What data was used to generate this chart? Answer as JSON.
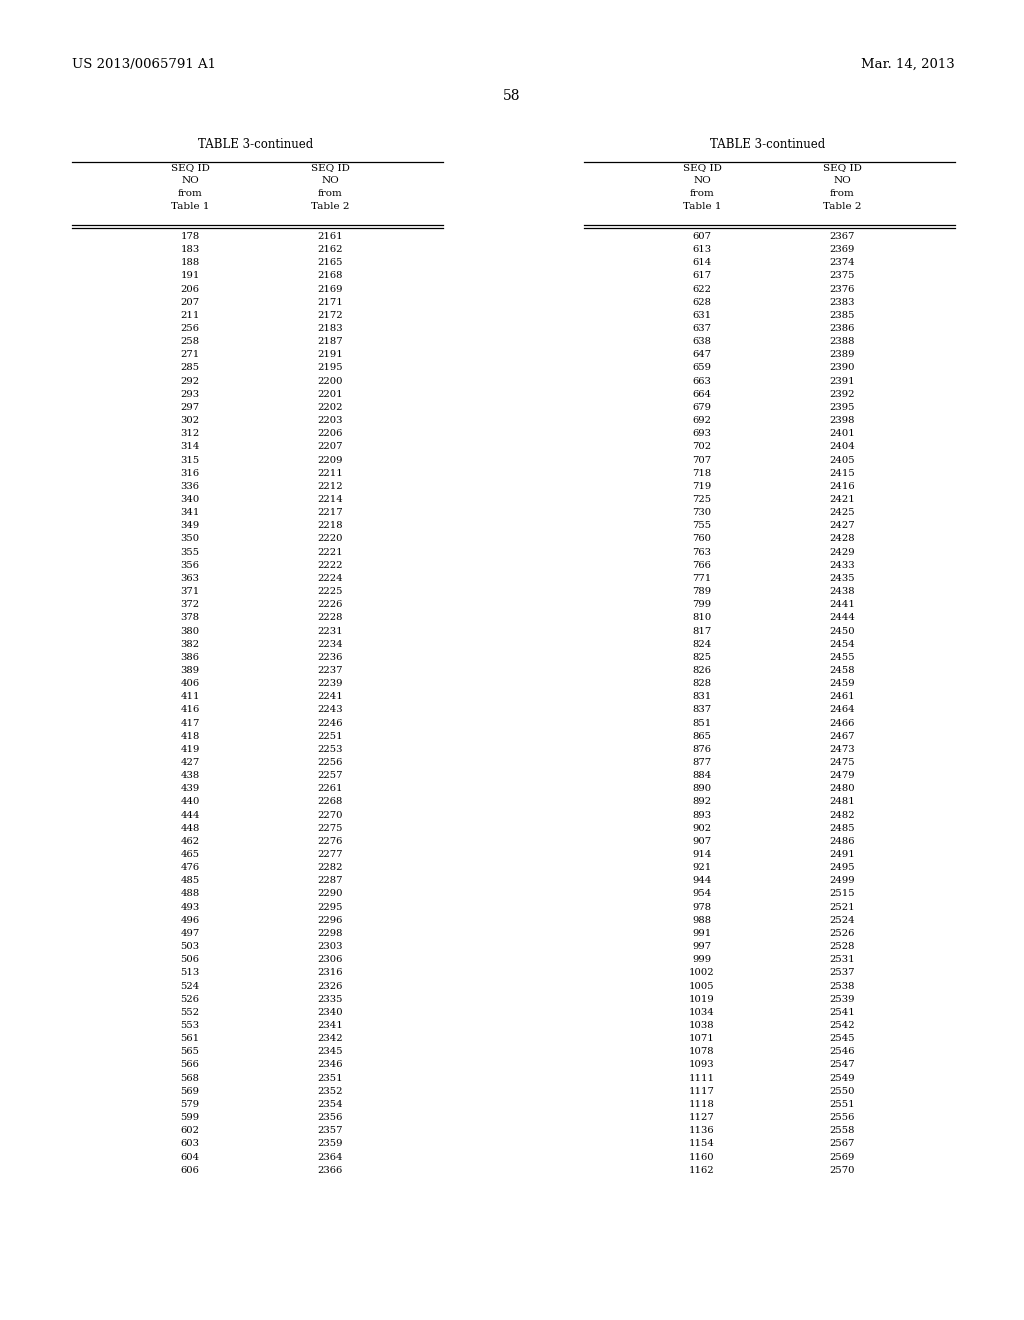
{
  "header_left": "US 2013/0065791 A1",
  "header_right": "Mar. 14, 2013",
  "page_number": "58",
  "table_title": "TABLE 3-continued",
  "col_header": [
    "SEQ ID",
    "NO",
    "from",
    "Table 1"
  ],
  "col_header2": [
    "SEQ ID",
    "NO",
    "from",
    "Table 2"
  ],
  "left_col1": [
    178,
    183,
    188,
    191,
    206,
    207,
    211,
    256,
    258,
    271,
    285,
    292,
    293,
    297,
    302,
    312,
    314,
    315,
    316,
    336,
    340,
    341,
    349,
    350,
    355,
    356,
    363,
    371,
    372,
    378,
    380,
    382,
    386,
    389,
    406,
    411,
    416,
    417,
    418,
    419,
    427,
    438,
    439,
    440,
    444,
    448,
    462,
    465,
    476,
    485,
    488,
    493,
    496,
    497,
    503,
    506,
    513,
    524,
    526,
    552,
    553,
    561,
    565,
    566,
    568,
    569,
    579,
    599,
    602,
    603,
    604,
    606
  ],
  "left_col2": [
    2161,
    2162,
    2165,
    2168,
    2169,
    2171,
    2172,
    2183,
    2187,
    2191,
    2195,
    2200,
    2201,
    2202,
    2203,
    2206,
    2207,
    2209,
    2211,
    2212,
    2214,
    2217,
    2218,
    2220,
    2221,
    2222,
    2224,
    2225,
    2226,
    2228,
    2231,
    2234,
    2236,
    2237,
    2239,
    2241,
    2243,
    2246,
    2251,
    2253,
    2256,
    2257,
    2261,
    2268,
    2270,
    2275,
    2276,
    2277,
    2282,
    2287,
    2290,
    2295,
    2296,
    2298,
    2303,
    2306,
    2316,
    2326,
    2335,
    2340,
    2341,
    2342,
    2345,
    2346,
    2351,
    2352,
    2354,
    2356,
    2357,
    2359,
    2364,
    2366
  ],
  "right_col1": [
    607,
    613,
    614,
    617,
    622,
    628,
    631,
    637,
    638,
    647,
    659,
    663,
    664,
    679,
    692,
    693,
    702,
    707,
    718,
    719,
    725,
    730,
    755,
    760,
    763,
    766,
    771,
    789,
    799,
    810,
    817,
    824,
    825,
    826,
    828,
    831,
    837,
    851,
    865,
    876,
    877,
    884,
    890,
    892,
    893,
    902,
    907,
    914,
    921,
    944,
    954,
    978,
    988,
    991,
    997,
    999,
    1002,
    1005,
    1019,
    1034,
    1038,
    1071,
    1078,
    1093,
    1111,
    1117,
    1118,
    1127,
    1136,
    1154,
    1160,
    1162
  ],
  "right_col2": [
    2367,
    2369,
    2374,
    2375,
    2376,
    2383,
    2385,
    2386,
    2388,
    2389,
    2390,
    2391,
    2392,
    2395,
    2398,
    2401,
    2404,
    2405,
    2415,
    2416,
    2421,
    2425,
    2427,
    2428,
    2429,
    2433,
    2435,
    2438,
    2441,
    2444,
    2450,
    2454,
    2455,
    2458,
    2459,
    2461,
    2464,
    2466,
    2467,
    2473,
    2475,
    2479,
    2480,
    2481,
    2482,
    2485,
    2486,
    2491,
    2495,
    2499,
    2515,
    2521,
    2524,
    2526,
    2528,
    2531,
    2537,
    2538,
    2539,
    2541,
    2542,
    2545,
    2546,
    2547,
    2549,
    2550,
    2551,
    2556,
    2558,
    2567,
    2569,
    2570
  ]
}
